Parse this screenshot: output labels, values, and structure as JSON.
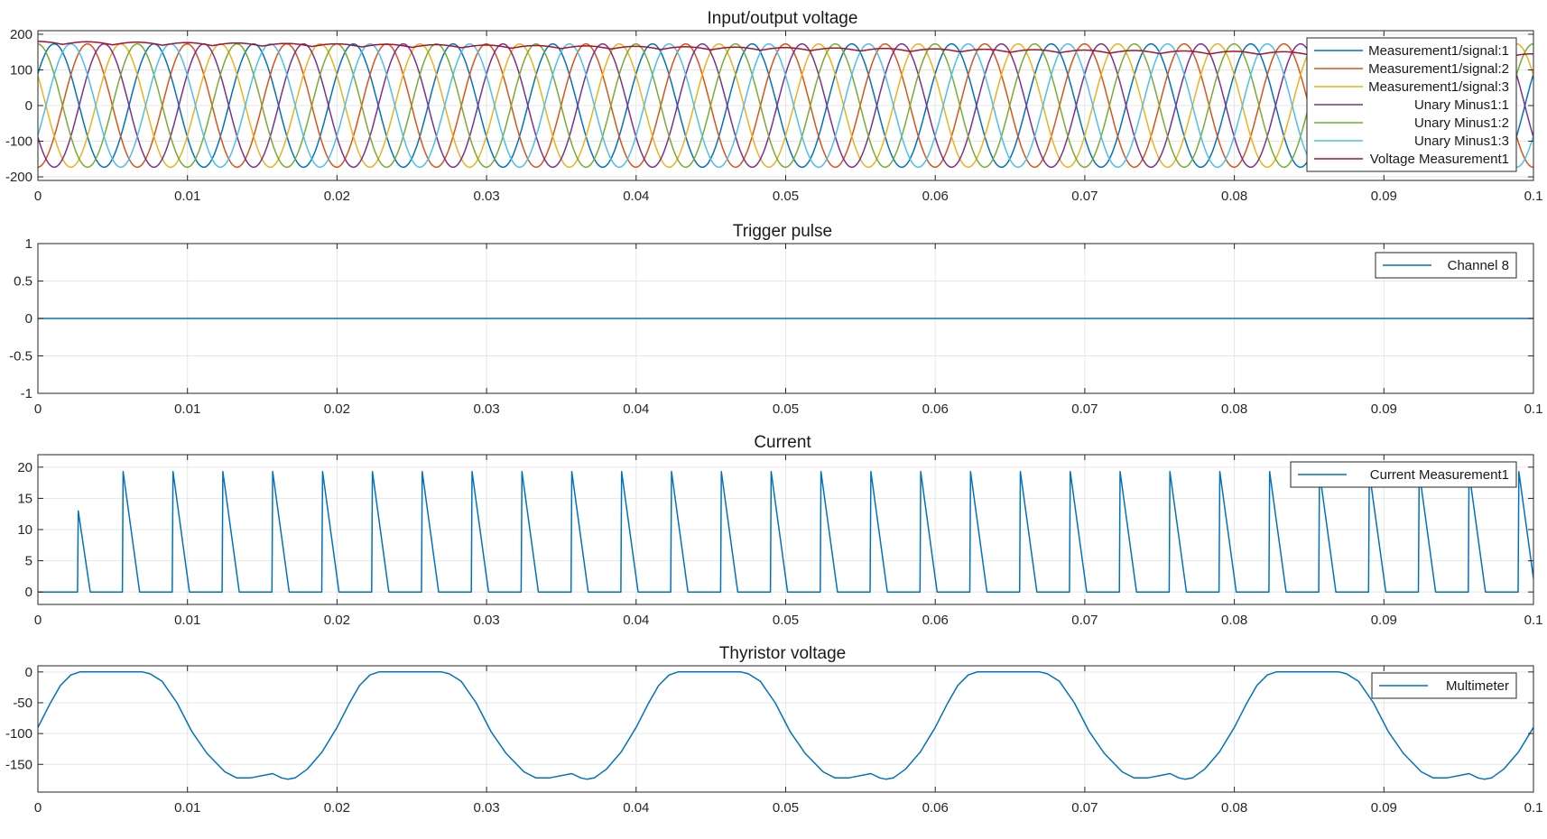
{
  "figure": {
    "background": "#ffffff",
    "axis_color": "#262626",
    "grid_color": "#e6e6e6"
  },
  "chart_data": [
    {
      "type": "line",
      "title": "Input/output voltage",
      "xlim": [
        0,
        0.1
      ],
      "ylim": [
        -210,
        210
      ],
      "xticks": [
        0,
        0.01,
        0.02,
        0.03,
        0.04,
        0.05,
        0.06,
        0.07,
        0.08,
        0.09,
        0.1
      ],
      "xtick_labels": [
        "0",
        "0.01",
        "0.02",
        "0.03",
        "0.04",
        "0.05",
        "0.06",
        "0.07",
        "0.08",
        "0.09",
        "0.1"
      ],
      "yticks": [
        -200,
        -100,
        0,
        100,
        200
      ],
      "ytick_labels": [
        "-200",
        "-100",
        "0",
        "100",
        "200"
      ],
      "grid": true,
      "legend_position": "top-right",
      "series": [
        {
          "name": "Measurement1/signal:1",
          "color": "#0072bd",
          "shape": "sine",
          "amplitude": 173,
          "frequency_hz": 150,
          "phase_deg": 31
        },
        {
          "name": "Measurement1/signal:2",
          "color": "#d95319",
          "shape": "sine",
          "amplitude": 173,
          "frequency_hz": 150,
          "phase_deg": -89
        },
        {
          "name": "Measurement1/signal:3",
          "color": "#edb120",
          "shape": "sine",
          "amplitude": 173,
          "frequency_hz": 150,
          "phase_deg": 151
        },
        {
          "name": "Unary Minus1:1",
          "color": "#7e2f8e",
          "shape": "sine",
          "amplitude": 173,
          "frequency_hz": 150,
          "phase_deg": 211
        },
        {
          "name": "Unary Minus1:2",
          "color": "#77ac30",
          "shape": "sine",
          "amplitude": 173,
          "frequency_hz": 150,
          "phase_deg": 91
        },
        {
          "name": "Unary Minus1:3",
          "color": "#4dbeee",
          "shape": "sine",
          "amplitude": 173,
          "frequency_hz": 150,
          "phase_deg": 331
        },
        {
          "name": "Voltage Measurement1",
          "color": "#a2142f",
          "shape": "ripple",
          "x": [
            0,
            0.1
          ],
          "y": [
            180,
            145
          ]
        }
      ]
    },
    {
      "type": "line",
      "title": "Trigger pulse",
      "xlim": [
        0,
        0.1
      ],
      "ylim": [
        -1,
        1
      ],
      "xticks": [
        0,
        0.01,
        0.02,
        0.03,
        0.04,
        0.05,
        0.06,
        0.07,
        0.08,
        0.09,
        0.1
      ],
      "xtick_labels": [
        "0",
        "0.01",
        "0.02",
        "0.03",
        "0.04",
        "0.05",
        "0.06",
        "0.07",
        "0.08",
        "0.09",
        "0.1"
      ],
      "yticks": [
        -1,
        -0.5,
        0,
        0.5,
        1
      ],
      "ytick_labels": [
        "-1",
        "-0.5",
        "0",
        "0.5",
        "1"
      ],
      "grid": true,
      "legend_position": "top-right",
      "series": [
        {
          "name": "Channel 8",
          "color": "#0072bd",
          "x": [
            0,
            0.1
          ],
          "y": [
            0,
            0
          ]
        }
      ]
    },
    {
      "type": "line",
      "title": "Current",
      "xlim": [
        0,
        0.1
      ],
      "ylim": [
        -2,
        22
      ],
      "xticks": [
        0,
        0.01,
        0.02,
        0.03,
        0.04,
        0.05,
        0.06,
        0.07,
        0.08,
        0.09,
        0.1
      ],
      "xtick_labels": [
        "0",
        "0.01",
        "0.02",
        "0.03",
        "0.04",
        "0.05",
        "0.06",
        "0.07",
        "0.08",
        "0.09",
        "0.1"
      ],
      "yticks": [
        0,
        5,
        10,
        15,
        20
      ],
      "ytick_labels": [
        "0",
        "5",
        "10",
        "15",
        "20"
      ],
      "grid": true,
      "legend_position": "top-right",
      "series": [
        {
          "name": "Current Measurement1",
          "color": "#0072bd",
          "shape": "pulse_train",
          "first_pulse": {
            "x": 0.0027,
            "peak": 13,
            "end": 0.0035
          },
          "period": 0.003333,
          "rise_start": 0.0057,
          "fall_duration": 0.0011,
          "peak": 19.3
        }
      ]
    },
    {
      "type": "line",
      "title": "Thyristor voltage",
      "xlim": [
        0,
        0.1
      ],
      "ylim": [
        -195,
        10
      ],
      "xticks": [
        0,
        0.01,
        0.02,
        0.03,
        0.04,
        0.05,
        0.06,
        0.07,
        0.08,
        0.09,
        0.1
      ],
      "xtick_labels": [
        "0",
        "0.01",
        "0.02",
        "0.03",
        "0.04",
        "0.05",
        "0.06",
        "0.07",
        "0.08",
        "0.09",
        "0.1"
      ],
      "yticks": [
        -150,
        -100,
        -50,
        0
      ],
      "ytick_labels": [
        "-150",
        "-100",
        "-50",
        "0"
      ],
      "grid": true,
      "legend_position": "top-right",
      "series": [
        {
          "name": "Multimeter",
          "color": "#0072bd",
          "period": 0.02,
          "x": [
            0,
            0.0008,
            0.0015,
            0.0022,
            0.0028,
            0.007,
            0.0075,
            0.0083,
            0.0093,
            0.0103,
            0.0113,
            0.0125,
            0.0133,
            0.0142,
            0.0157,
            0.0163,
            0.0167,
            0.0172,
            0.018,
            0.019,
            0.02
          ],
          "y": [
            -90,
            -52,
            -22,
            -5,
            0,
            0,
            -3,
            -15,
            -50,
            -97,
            -132,
            -162,
            -172,
            -172,
            -165,
            -172,
            -174,
            -172,
            -158,
            -130,
            -90
          ]
        }
      ]
    }
  ]
}
